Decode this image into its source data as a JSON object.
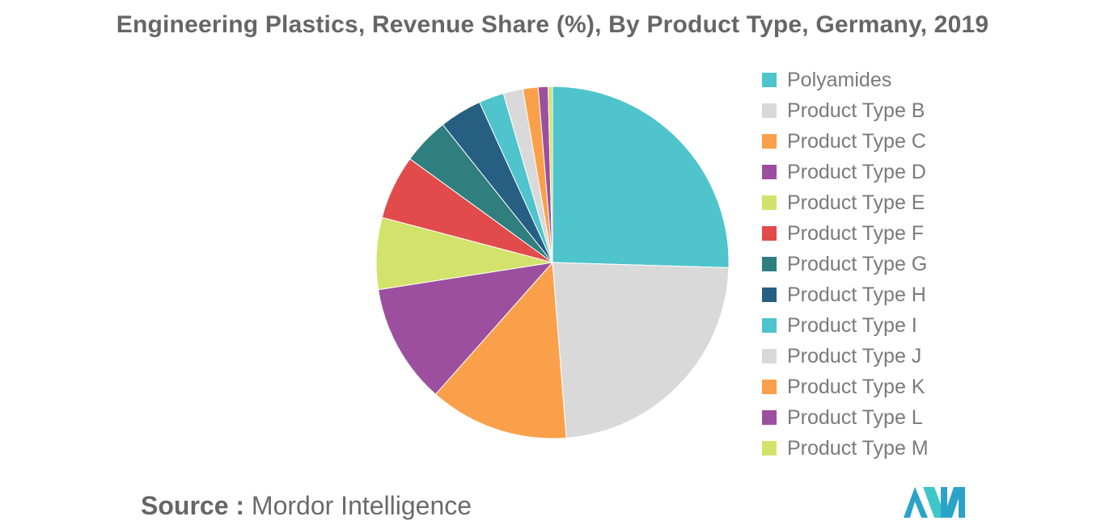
{
  "chart_data": {
    "type": "pie",
    "title": "Engineering Plastics, Revenue Share (%), By Product Type, Germany, 2019",
    "categories": [
      "Polyamides",
      "Product Type B",
      "Product Type C",
      "Product Type D",
      "Product Type E",
      "Product Type F",
      "Product Type G",
      "Product Type H",
      "Product Type I",
      "Product Type J",
      "Product Type K",
      "Product Type L",
      "Product Type M"
    ],
    "values": [
      25.5,
      23.3,
      12.8,
      11.0,
      6.6,
      5.9,
      4.3,
      3.9,
      2.3,
      1.8,
      1.4,
      0.9,
      0.4
    ],
    "colors": [
      "#4fc4cc",
      "#d9d9d9",
      "#fba04a",
      "#9b4f9e",
      "#d3e26a",
      "#e14b4b",
      "#2e7f7e",
      "#265f82",
      "#4fc4cc",
      "#d9d9d9",
      "#fba04a",
      "#9b4f9e",
      "#d3e26a"
    ],
    "start_angle": "12 o'clock, clockwise",
    "legend_position": "right"
  },
  "source": {
    "label": "Source :",
    "value": "Mordor Intelligence"
  },
  "logo": {
    "name": "Mordor Intelligence logo",
    "colors": [
      "#2ba3c9",
      "#3fc6c9"
    ]
  }
}
